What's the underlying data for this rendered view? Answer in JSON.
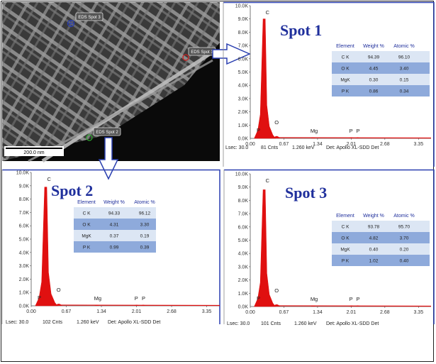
{
  "sem": {
    "scale_label": "200.0 nm",
    "markers": [
      {
        "label": "EDS Spot 3",
        "color": "#2a3fb0"
      },
      {
        "label": "EDS Spot 1",
        "color": "#cc2222"
      },
      {
        "label": "EDS Spot 2",
        "color": "#2fa02f"
      }
    ]
  },
  "chart_data": [
    {
      "type": "bar",
      "title": "Spot 1",
      "ylim": [
        0,
        10000
      ],
      "xlim": [
        0,
        3.6
      ],
      "y_ticks": [
        "1.0K",
        "2.0K",
        "3.0K",
        "4.0K",
        "5.0K",
        "6.0K",
        "7.0K",
        "8.0K",
        "9.0K",
        "10.0K"
      ],
      "x_ticks": [
        "0.00",
        "0.67",
        "1.34",
        "2.01",
        "2.68",
        "3.35"
      ],
      "peaks": [
        {
          "label": "C",
          "x": 0.277,
          "y": 9000
        },
        {
          "label": "O",
          "x": 0.525,
          "y": 350
        },
        {
          "label": "Mg",
          "x": 1.254,
          "y": 30
        },
        {
          "label": "P",
          "x": 2.013,
          "y": 60
        },
        {
          "label": "P",
          "x": 2.139,
          "y": 40
        },
        {
          "label": "P",
          "x": 0.12,
          "y": 0
        }
      ],
      "table": {
        "headers": [
          "Element",
          "Weight %",
          "Atomic %"
        ],
        "rows": [
          [
            "C K",
            "94.39",
            "96.10"
          ],
          [
            "O K",
            "4.45",
            "3.40"
          ],
          [
            "MgK",
            "0.30",
            "0.15"
          ],
          [
            "P K",
            "0.86",
            "0.34"
          ]
        ]
      },
      "footer": {
        "lsec": "Lsec: 30.0",
        "cnts": "81 Cnts",
        "kev": "1.260 keV",
        "det": "Det: Apollo XL-SDD Det"
      }
    },
    {
      "type": "bar",
      "title": "Spot 2",
      "ylim": [
        0,
        10000
      ],
      "xlim": [
        0,
        3.6
      ],
      "y_ticks": [
        "1.0K",
        "2.0K",
        "3.0K",
        "4.0K",
        "5.0K",
        "6.0K",
        "7.0K",
        "8.0K",
        "9.0K",
        "10.0K"
      ],
      "x_ticks": [
        "0.00",
        "0.67",
        "1.34",
        "2.01",
        "2.68",
        "3.35"
      ],
      "peaks": [
        {
          "label": "C",
          "x": 0.277,
          "y": 8900
        },
        {
          "label": "O",
          "x": 0.525,
          "y": 300
        },
        {
          "label": "Mg",
          "x": 1.254,
          "y": 30
        },
        {
          "label": "P",
          "x": 2.013,
          "y": 70
        },
        {
          "label": "P",
          "x": 2.139,
          "y": 40
        },
        {
          "label": "P",
          "x": 0.12,
          "y": 0
        }
      ],
      "table": {
        "headers": [
          "Element",
          "Weight %",
          "Atomic %"
        ],
        "rows": [
          [
            "C K",
            "94.33",
            "96.12"
          ],
          [
            "O K",
            "4.31",
            "3.30"
          ],
          [
            "MgK",
            "0.37",
            "0.19"
          ],
          [
            "P K",
            "0.99",
            "0.39"
          ]
        ]
      },
      "footer": {
        "lsec": "Lsec: 30.0",
        "cnts": "102 Cnts",
        "kev": "1.260 keV",
        "det": "Det: Apollo XL-SDD Det"
      }
    },
    {
      "type": "bar",
      "title": "Spot 3",
      "ylim": [
        0,
        10000
      ],
      "xlim": [
        0,
        3.6
      ],
      "y_ticks": [
        "1.0K",
        "2.0K",
        "3.0K",
        "4.0K",
        "5.0K",
        "6.0K",
        "7.0K",
        "8.0K",
        "9.0K",
        "10.0K"
      ],
      "x_ticks": [
        "0.00",
        "0.67",
        "1.34",
        "2.01",
        "2.68",
        "3.35"
      ],
      "peaks": [
        {
          "label": "C",
          "x": 0.277,
          "y": 8800
        },
        {
          "label": "O",
          "x": 0.525,
          "y": 320
        },
        {
          "label": "Mg",
          "x": 1.254,
          "y": 30
        },
        {
          "label": "P",
          "x": 2.013,
          "y": 60
        },
        {
          "label": "P",
          "x": 2.139,
          "y": 40
        },
        {
          "label": "P",
          "x": 0.12,
          "y": 0
        }
      ],
      "table": {
        "headers": [
          "Element",
          "Weight %",
          "Atomic %"
        ],
        "rows": [
          [
            "C K",
            "93.78",
            "95.70"
          ],
          [
            "O K",
            "4.82",
            "3.70"
          ],
          [
            "MgK",
            "0.40",
            "0.20"
          ],
          [
            "P K",
            "1.02",
            "0.40"
          ]
        ]
      },
      "footer": {
        "lsec": "Lsec: 30.0",
        "cnts": "101 Cnts",
        "kev": "1.260 keV",
        "det": "Det: Apollo XL-SDD Det"
      }
    }
  ],
  "colors": {
    "spectrum": "#e01010",
    "frame": "#2a3fb0",
    "title": "#1f2f9c",
    "row_dark": "#8eaadb",
    "row_light": "#dce6f4"
  }
}
